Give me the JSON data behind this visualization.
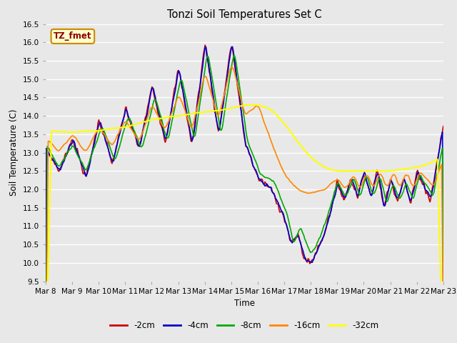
{
  "title": "Tonzi Soil Temperatures Set C",
  "xlabel": "Time",
  "ylabel": "Soil Temperature (C)",
  "ylim": [
    9.5,
    16.5
  ],
  "annotation_text": "TZ_fmet",
  "annotation_bg": "#ffffcc",
  "annotation_border": "#cc8800",
  "annotation_text_color": "#8b0000",
  "bg_color": "#e8e8e8",
  "grid_color": "white",
  "series": [
    {
      "label": "-2cm",
      "color": "#cc0000",
      "lw": 1.2
    },
    {
      "label": "-4cm",
      "color": "#0000cc",
      "lw": 1.2
    },
    {
      "label": "-8cm",
      "color": "#00aa00",
      "lw": 1.2
    },
    {
      "label": "-16cm",
      "color": "#ff8800",
      "lw": 1.2
    },
    {
      "label": "-32cm",
      "color": "#ffff00",
      "lw": 1.5
    }
  ],
  "x_tick_labels": [
    "Mar 8",
    "Mar 9",
    "Mar 10",
    "Mar 11",
    "Mar 12",
    "Mar 13",
    "Mar 14",
    "Mar 15",
    "Mar 16",
    "Mar 17",
    "Mar 18",
    "Mar 19",
    "Mar 20",
    "Mar 21",
    "Mar 22",
    "Mar 23"
  ],
  "yticks": [
    9.5,
    10.0,
    10.5,
    11.0,
    11.5,
    12.0,
    12.5,
    13.0,
    13.5,
    14.0,
    14.5,
    15.0,
    15.5,
    16.0,
    16.5
  ],
  "n_points": 480
}
